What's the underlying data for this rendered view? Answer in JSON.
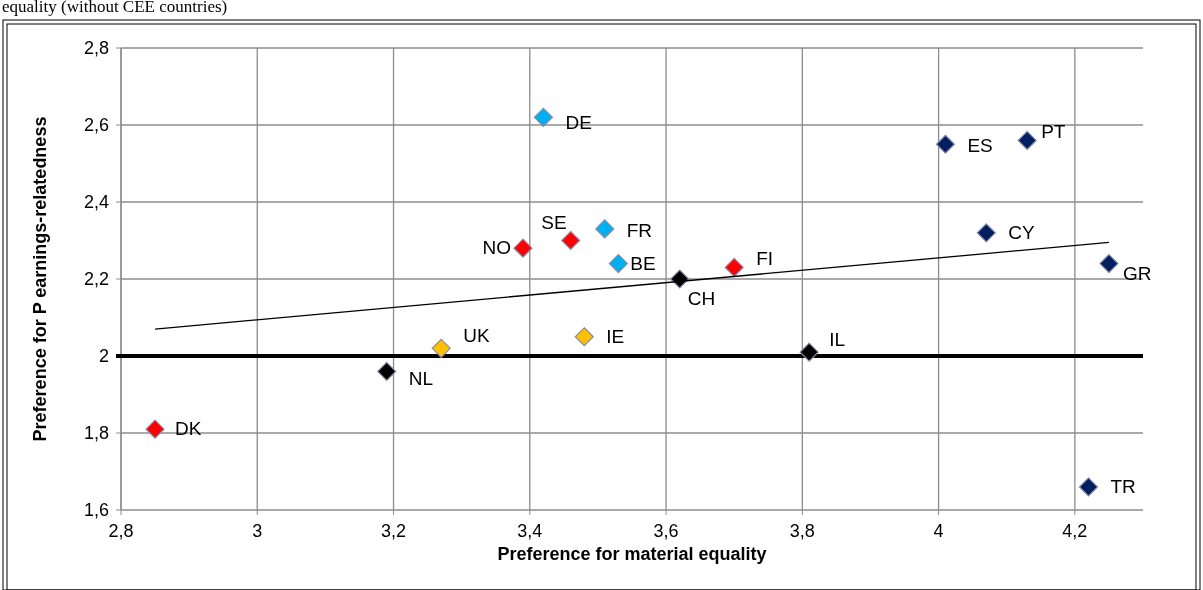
{
  "chart_data": {
    "type": "scatter",
    "title": "equality (without CEE countries)",
    "xlabel": "Preference for material equality",
    "ylabel": "Preference for P earnings-relatedness",
    "xlim": [
      2.8,
      4.3
    ],
    "xticks": [
      {
        "value": 2.8,
        "label": "2,8"
      },
      3,
      {
        "value": 3.2,
        "label": "3,2"
      },
      {
        "value": 3.4,
        "label": "3,4"
      },
      {
        "value": 3.6,
        "label": "3,6"
      },
      {
        "value": 3.8,
        "label": "3,8"
      },
      4,
      {
        "value": 4.2,
        "label": "4,2"
      }
    ],
    "ylim": [
      1.6,
      2.8
    ],
    "yticks": [
      {
        "value": 1.6,
        "label": "1,6"
      },
      {
        "value": 1.8,
        "label": "1,8"
      },
      2,
      {
        "value": 2.2,
        "label": "2,2"
      },
      {
        "value": 2.4,
        "label": "2,4"
      },
      {
        "value": 2.6,
        "label": "2,6"
      },
      {
        "value": 2.8,
        "label": "2,8"
      }
    ],
    "grid": true,
    "marker": "diamond",
    "series": [
      {
        "x": [
          3.42,
          4.01,
          4.13,
          4.07,
          4.25,
          3.7,
          3.81,
          4.22,
          3.39,
          3.46,
          3.51,
          3.53,
          3.62,
          3.48,
          3.27,
          3.19,
          2.85
        ],
        "values": [
          2.62,
          2.55,
          2.56,
          2.32,
          2.24,
          2.23,
          2.01,
          1.66,
          2.28,
          2.3,
          2.33,
          2.24,
          2.2,
          2.05,
          2.02,
          1.96,
          1.81
        ],
        "colors": [
          "#00b0f0",
          "#002060",
          "#002060",
          "#002060",
          "#002060",
          "#ff0000",
          "#000000",
          "#002060",
          "#ff0000",
          "#ff0000",
          "#00b0f0",
          "#00b0f0",
          "#000000",
          "#ffc000",
          "#ffc000",
          "#000000",
          "#ff0000"
        ]
      },
      {
        "type": "line",
        "x": [
          2.85,
          4.25
        ],
        "values": [
          2.07,
          2.295
        ],
        "color": "#000000",
        "marker": "none"
      }
    ],
    "ref_lines": [
      {
        "axis": "y",
        "value": 2,
        "color": "#000000"
      }
    ],
    "annotations": [
      {
        "text": "DE",
        "x": 3.42,
        "y": 2.62
      },
      {
        "text": "ES",
        "x": 4.01,
        "y": 2.55
      },
      {
        "text": "PT",
        "x": 4.13,
        "y": 2.56
      },
      {
        "text": "CY",
        "x": 4.07,
        "y": 2.32
      },
      {
        "text": "GR",
        "x": 4.25,
        "y": 2.24
      },
      {
        "text": "FI",
        "x": 3.7,
        "y": 2.23
      },
      {
        "text": "IL",
        "x": 3.81,
        "y": 2.01
      },
      {
        "text": "TR",
        "x": 4.22,
        "y": 1.66
      },
      {
        "text": "NO",
        "x": 3.39,
        "y": 2.28
      },
      {
        "text": "SE",
        "x": 3.46,
        "y": 2.3
      },
      {
        "text": "FR",
        "x": 3.51,
        "y": 2.33
      },
      {
        "text": "BE",
        "x": 3.53,
        "y": 2.24
      },
      {
        "text": "CH",
        "x": 3.62,
        "y": 2.2
      },
      {
        "text": "IE",
        "x": 3.48,
        "y": 2.05
      },
      {
        "text": "UK",
        "x": 3.27,
        "y": 2.02
      },
      {
        "text": "NL",
        "x": 3.19,
        "y": 1.96
      },
      {
        "text": "DK",
        "x": 2.85,
        "y": 1.81
      }
    ]
  }
}
